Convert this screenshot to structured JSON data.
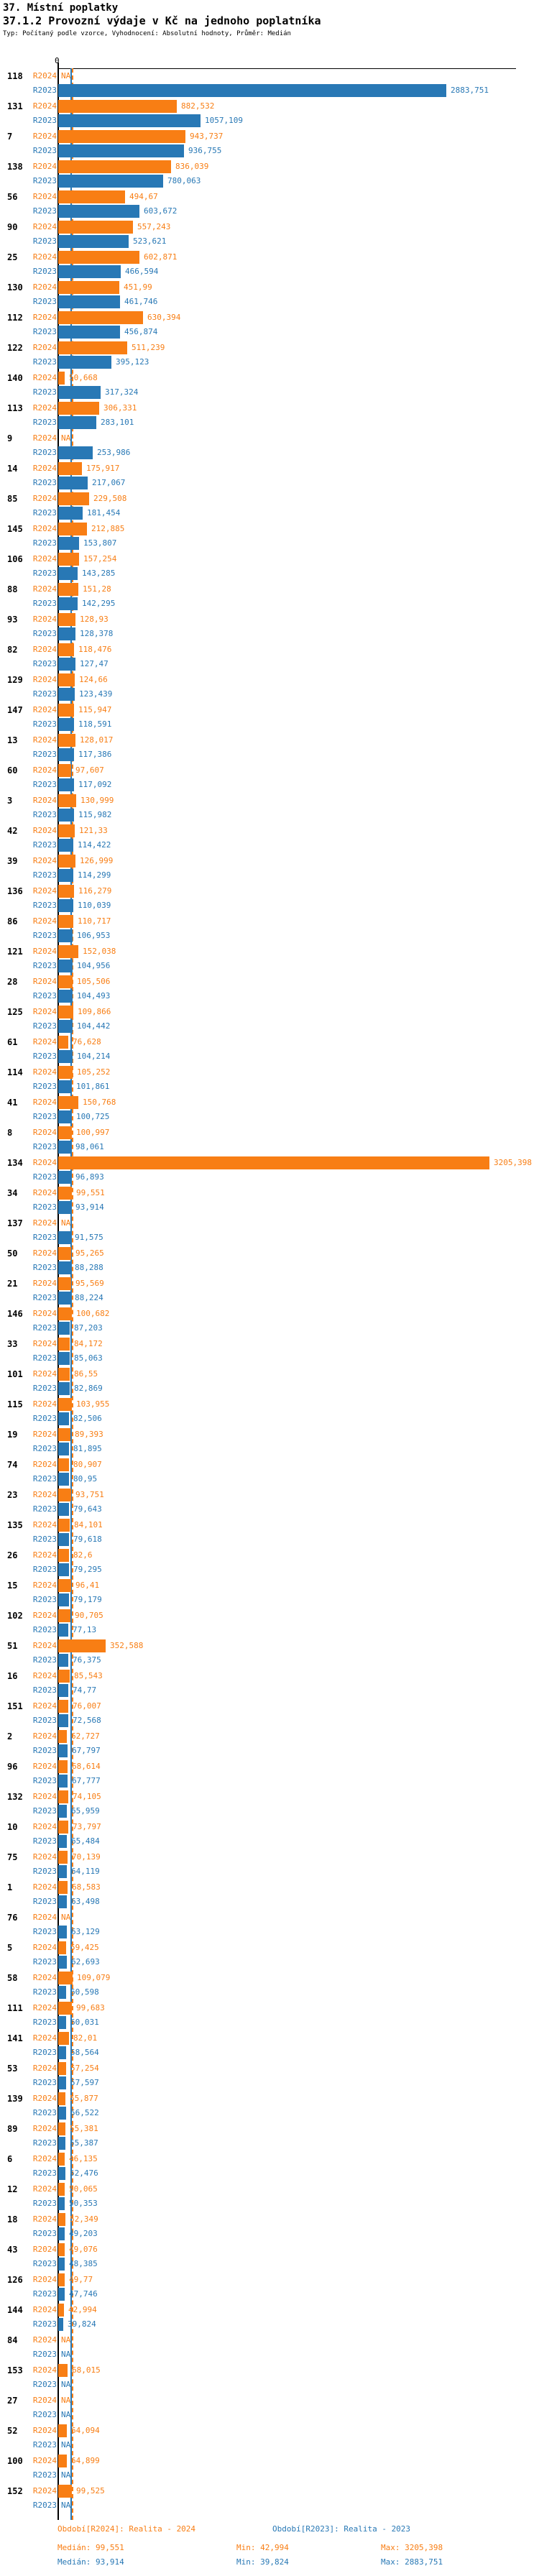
{
  "header": {
    "title": "37. Místní poplatky",
    "subtitle": "37.1.2 Provozní výdaje v Kč na jednoho poplatníka",
    "meta": "Typ: Počítaný podle vzorce, Vyhodnocení: Absolutní hodnoty, Průměr: Medián"
  },
  "axis": {
    "zero_label": "0"
  },
  "legend": {
    "r2024": {
      "period": "Období[R2024]: Realita - 2024",
      "median": "Medián: 99,551",
      "min": "Min: 42,994",
      "max": "Max: 3205,398"
    },
    "r2023": {
      "period": "Období[R2023]: Realita - 2023",
      "median": "Medián: 93,914",
      "min": "Min: 39,824",
      "max": "Max: 2883,751"
    }
  },
  "chart_data": {
    "type": "bar",
    "orientation": "horizontal",
    "title": "37.1.2 Provozní výdaje v Kč na jednoho poplatníka",
    "value_axis": {
      "zero_label": "0",
      "unit": "Kč"
    },
    "na_label": "NA",
    "series": [
      {
        "name": "R2024",
        "color": "#f87e14",
        "median": 99.551,
        "min": 42.994,
        "max": 3205.398
      },
      {
        "name": "R2023",
        "color": "#2878b5",
        "median": 93.914,
        "min": 39.824,
        "max": 2883.751
      }
    ],
    "rows": [
      [
        "118",
        null,
        "2883,751"
      ],
      [
        "131",
        "882,532",
        "1057,109"
      ],
      [
        "7",
        "943,737",
        "936,755"
      ],
      [
        "138",
        "836,039",
        "780,063"
      ],
      [
        "56",
        "494,67",
        "603,672"
      ],
      [
        "90",
        "557,243",
        "523,621"
      ],
      [
        "25",
        "602,871",
        "466,594"
      ],
      [
        "130",
        "451,99",
        "461,746"
      ],
      [
        "112",
        "630,394",
        "456,874"
      ],
      [
        "122",
        "511,239",
        "395,123"
      ],
      [
        "140",
        "50,668",
        "317,324"
      ],
      [
        "113",
        "306,331",
        "283,101"
      ],
      [
        "9",
        null,
        "253,986"
      ],
      [
        "14",
        "175,917",
        "217,067"
      ],
      [
        "85",
        "229,508",
        "181,454"
      ],
      [
        "145",
        "212,885",
        "153,807"
      ],
      [
        "106",
        "157,254",
        "143,285"
      ],
      [
        "88",
        "151,28",
        "142,295"
      ],
      [
        "93",
        "128,93",
        "128,378"
      ],
      [
        "82",
        "118,476",
        "127,47"
      ],
      [
        "129",
        "124,66",
        "123,439"
      ],
      [
        "147",
        "115,947",
        "118,591"
      ],
      [
        "13",
        "128,017",
        "117,386"
      ],
      [
        "60",
        "97,607",
        "117,092"
      ],
      [
        "3",
        "130,999",
        "115,982"
      ],
      [
        "42",
        "121,33",
        "114,422"
      ],
      [
        "39",
        "126,999",
        "114,299"
      ],
      [
        "136",
        "116,279",
        "110,039"
      ],
      [
        "86",
        "110,717",
        "106,953"
      ],
      [
        "121",
        "152,038",
        "104,956"
      ],
      [
        "28",
        "105,506",
        "104,493"
      ],
      [
        "125",
        "109,866",
        "104,442"
      ],
      [
        "61",
        "76,628",
        "104,214"
      ],
      [
        "114",
        "105,252",
        "101,861"
      ],
      [
        "41",
        "150,768",
        "100,725"
      ],
      [
        "8",
        "100,997",
        "98,061"
      ],
      [
        "134",
        "3205,398",
        "96,893"
      ],
      [
        "34",
        "99,551",
        "93,914"
      ],
      [
        "137",
        null,
        "91,575"
      ],
      [
        "50",
        "95,265",
        "88,288"
      ],
      [
        "21",
        "95,569",
        "88,224"
      ],
      [
        "146",
        "100,682",
        "87,203"
      ],
      [
        "33",
        "84,172",
        "85,063"
      ],
      [
        "101",
        "86,55",
        "82,869"
      ],
      [
        "115",
        "103,955",
        "82,506"
      ],
      [
        "19",
        "89,393",
        "81,895"
      ],
      [
        "74",
        "80,907",
        "80,95"
      ],
      [
        "23",
        "93,751",
        "79,643"
      ],
      [
        "135",
        "84,101",
        "79,618"
      ],
      [
        "26",
        "82,6",
        "79,295"
      ],
      [
        "15",
        "96,41",
        "79,179"
      ],
      [
        "102",
        "90,705",
        "77,13"
      ],
      [
        "51",
        "352,588",
        "76,375"
      ],
      [
        "16",
        "85,543",
        "74,77"
      ],
      [
        "151",
        "76,007",
        "72,568"
      ],
      [
        "2",
        "62,727",
        "67,797"
      ],
      [
        "96",
        "68,614",
        "67,777"
      ],
      [
        "132",
        "74,105",
        "65,959"
      ],
      [
        "10",
        "73,797",
        "65,484"
      ],
      [
        "75",
        "70,139",
        "64,119"
      ],
      [
        "1",
        "68,583",
        "63,498"
      ],
      [
        "76",
        null,
        "63,129"
      ],
      [
        "5",
        "59,425",
        "62,693"
      ],
      [
        "58",
        "109,079",
        "60,598"
      ],
      [
        "111",
        "99,683",
        "60,031"
      ],
      [
        "141",
        "82,01",
        "58,564"
      ],
      [
        "53",
        "57,254",
        "57,597"
      ],
      [
        "139",
        "55,877",
        "56,522"
      ],
      [
        "89",
        "55,381",
        "55,387"
      ],
      [
        "6",
        "46,135",
        "52,476"
      ],
      [
        "12",
        "50,065",
        "50,353"
      ],
      [
        "18",
        "52,349",
        "49,203"
      ],
      [
        "43",
        "49,076",
        "48,385"
      ],
      [
        "126",
        "49,77",
        "47,746"
      ],
      [
        "144",
        "42,994",
        "39,824"
      ],
      [
        "84",
        null,
        null
      ],
      [
        "153",
        "68,015",
        null
      ],
      [
        "27",
        null,
        null
      ],
      [
        "52",
        "64,094",
        null
      ],
      [
        "100",
        "64,899",
        null
      ],
      [
        "152",
        "99,525",
        null
      ]
    ]
  }
}
